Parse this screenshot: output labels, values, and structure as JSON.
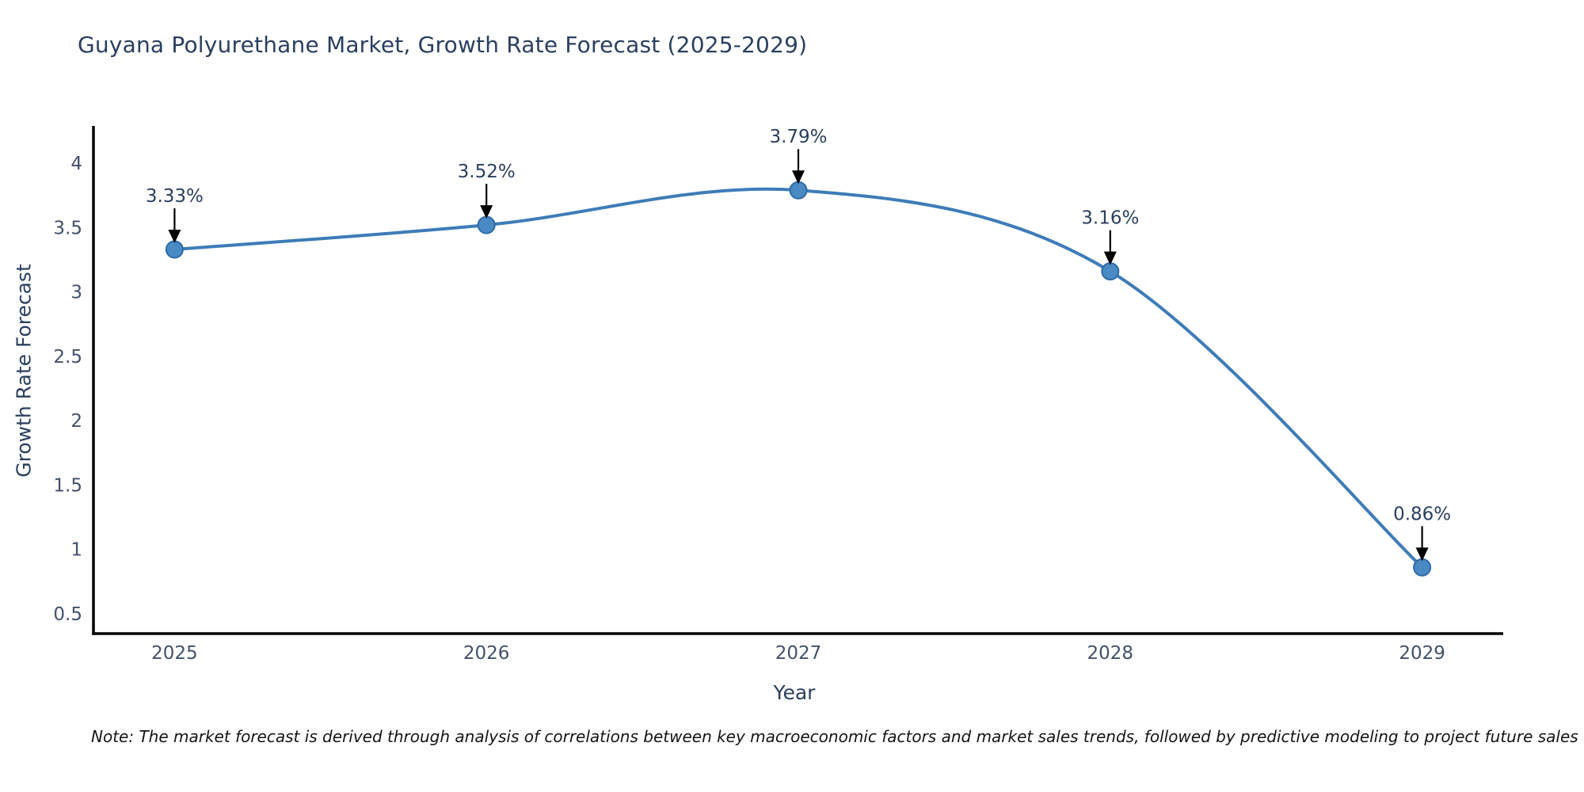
{
  "title": "Guyana Polyurethane Market, Growth Rate Forecast (2025-2029)",
  "note": "Note: The market forecast is derived through analysis of correlations between key macroeconomic factors and market sales trends, followed by predictive modeling to project future sales",
  "chart_data": {
    "type": "line",
    "title": "Guyana Polyurethane Market, Growth Rate Forecast (2025-2029)",
    "xlabel": "Year",
    "ylabel": "Growth Rate Forecast",
    "x": [
      2025,
      2026,
      2027,
      2028,
      2029
    ],
    "x_tick_labels": [
      "2025",
      "2026",
      "2027",
      "2028",
      "2029"
    ],
    "series": [
      {
        "name": "Growth Rate Forecast",
        "values": [
          3.33,
          3.52,
          3.79,
          3.16,
          0.86
        ]
      }
    ],
    "point_labels": [
      "3.33%",
      "3.52%",
      "3.79%",
      "3.16%",
      "0.86%"
    ],
    "yticks": [
      0.5,
      1,
      1.5,
      2,
      2.5,
      3,
      3.5,
      4
    ],
    "ytick_labels": [
      "0.5",
      "1",
      "1.5",
      "2",
      "2.5",
      "3",
      "3.5",
      "4"
    ],
    "ylim": [
      0.345,
      4.29
    ],
    "xlim": [
      2024.74,
      2029.26
    ],
    "grid": false,
    "legend": false,
    "smooth_line": true,
    "colors": {
      "line": "#3e7cb8",
      "marker_fill": "#4a8ac4",
      "marker_edge": "#2e6ba5",
      "axis_line": "#000000",
      "tick_label": "#42516b",
      "annotation_text": "#2a3f5f",
      "annotation_arrow": "#000000",
      "title": "#2a3f5f"
    }
  }
}
